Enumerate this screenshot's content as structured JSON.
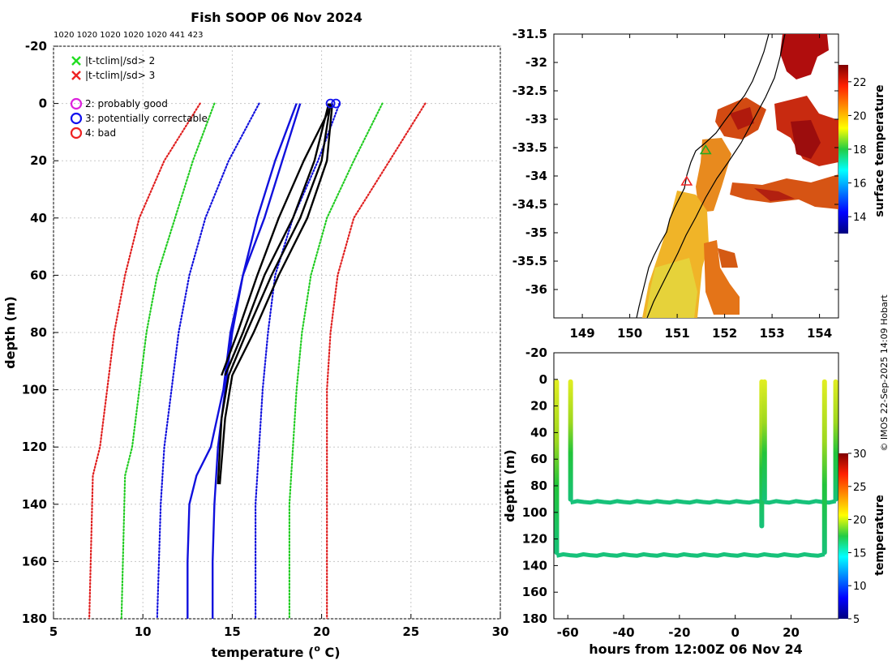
{
  "chart_data": [
    {
      "type": "line",
      "id": "profiles",
      "title": "Fish SOOP 06 Nov 2024",
      "subtitle": "1020 1020 1020 1020 1020 441 423",
      "xlabel": "temperature (",
      "xlabel_sup": "o",
      "xlabel_tail": " C)",
      "ylabel": "depth (m)",
      "xlim": [
        5,
        30
      ],
      "ylim": [
        -20,
        180
      ],
      "y_inverted": true,
      "xticks": [
        5,
        10,
        15,
        20,
        25,
        30
      ],
      "yticks": [
        -20,
        0,
        20,
        40,
        60,
        80,
        100,
        120,
        140,
        160,
        180
      ],
      "grid": true,
      "legend": [
        {
          "label": "|t-tclim|/sd> 2",
          "marker": "x",
          "color": "#22dd22"
        },
        {
          "label": "|t-tclim|/sd> 3",
          "marker": "x",
          "color": "#ee2222"
        },
        {
          "label": "2: probably good",
          "marker": "o",
          "color": "#dd22dd"
        },
        {
          "label": "3: potentially correctable",
          "marker": "o",
          "color": "#1111ee"
        },
        {
          "label": "4: bad",
          "marker": "o",
          "color": "#ee2222"
        }
      ],
      "series": [
        {
          "name": "clim-3sd-left",
          "color": "#e02020",
          "dotted": true,
          "depth": [
            0,
            20,
            40,
            60,
            80,
            100,
            120,
            130,
            180
          ],
          "values": [
            13.2,
            11.2,
            9.8,
            9.0,
            8.4,
            8.0,
            7.6,
            7.2,
            7.0
          ]
        },
        {
          "name": "clim-2sd-left",
          "color": "#22cc22",
          "dotted": true,
          "depth": [
            0,
            20,
            40,
            60,
            80,
            100,
            120,
            130,
            180
          ],
          "values": [
            14.0,
            12.8,
            11.8,
            10.8,
            10.2,
            9.8,
            9.4,
            9.0,
            8.8
          ]
        },
        {
          "name": "clim-1sd-left",
          "color": "#1111dd",
          "dotted": true,
          "depth": [
            0,
            20,
            40,
            60,
            80,
            100,
            120,
            140,
            180
          ],
          "values": [
            16.5,
            14.8,
            13.5,
            12.6,
            12.0,
            11.6,
            11.2,
            11.0,
            10.8
          ]
        },
        {
          "name": "clim-1sd-right",
          "color": "#1111dd",
          "dotted": true,
          "depth": [
            0,
            20,
            40,
            60,
            80,
            100,
            120,
            140,
            180
          ],
          "values": [
            21.0,
            19.8,
            18.4,
            17.4,
            17.0,
            16.7,
            16.5,
            16.3,
            16.3
          ]
        },
        {
          "name": "clim-2sd-right",
          "color": "#22cc22",
          "dotted": true,
          "depth": [
            0,
            20,
            40,
            60,
            80,
            100,
            120,
            140,
            180
          ],
          "values": [
            23.4,
            21.8,
            20.3,
            19.4,
            18.9,
            18.6,
            18.4,
            18.2,
            18.2
          ]
        },
        {
          "name": "clim-3sd-right",
          "color": "#e02020",
          "dotted": true,
          "depth": [
            0,
            20,
            40,
            60,
            80,
            100,
            120,
            140,
            180
          ],
          "values": [
            25.8,
            23.8,
            21.8,
            20.9,
            20.5,
            20.3,
            20.3,
            20.3,
            20.3
          ]
        },
        {
          "name": "profile-blue-1",
          "color": "#1010dd",
          "dotted": false,
          "depth": [
            0,
            20,
            40,
            60,
            80,
            100,
            120,
            140,
            160,
            180
          ],
          "values": [
            18.6,
            17.4,
            16.4,
            15.6,
            15.0,
            14.6,
            14.2,
            14.0,
            13.9,
            13.9
          ]
        },
        {
          "name": "profile-blue-2",
          "color": "#1010dd",
          "dotted": false,
          "depth": [
            0,
            20,
            40,
            60,
            80,
            100,
            120,
            130,
            140,
            160,
            180
          ],
          "values": [
            18.8,
            17.8,
            16.8,
            15.6,
            14.9,
            14.5,
            13.8,
            13.0,
            12.6,
            12.5,
            12.5
          ]
        },
        {
          "name": "profile-black-1",
          "color": "#000000",
          "dotted": false,
          "depth": [
            0,
            20,
            40,
            60,
            80,
            95
          ],
          "values": [
            20.4,
            19.6,
            18.4,
            16.8,
            15.6,
            14.6
          ]
        },
        {
          "name": "profile-black-2",
          "color": "#000000",
          "dotted": false,
          "depth": [
            0,
            20,
            40,
            60,
            80,
            95
          ],
          "values": [
            20.6,
            19.0,
            17.6,
            16.4,
            15.3,
            14.4
          ]
        },
        {
          "name": "profile-black-3",
          "color": "#000000",
          "dotted": false,
          "depth": [
            0,
            20,
            40,
            60,
            80,
            95,
            110,
            133
          ],
          "values": [
            20.5,
            20.0,
            18.8,
            17.2,
            15.8,
            14.8,
            14.4,
            14.2
          ]
        },
        {
          "name": "profile-black-4",
          "color": "#000000",
          "dotted": false,
          "depth": [
            0,
            20,
            40,
            60,
            80,
            95,
            110,
            133
          ],
          "values": [
            20.6,
            20.3,
            19.2,
            17.6,
            16.2,
            15.0,
            14.6,
            14.3
          ]
        }
      ],
      "flags": [
        {
          "temp": 20.5,
          "depth": 0,
          "color": "#1111ee"
        },
        {
          "temp": 20.8,
          "depth": 0,
          "color": "#1111ee"
        }
      ]
    },
    {
      "type": "heatmap",
      "id": "sst-map",
      "xlim": [
        148.4,
        154.4
      ],
      "ylim": [
        -36.5,
        -31.5
      ],
      "xticks": [
        149,
        150,
        151,
        152,
        153,
        154
      ],
      "yticks": [
        -31.5,
        -32,
        -32.5,
        -33,
        -33.5,
        -34,
        -34.5,
        -35,
        -35.5,
        -36
      ],
      "colorbar_label": "surface temperature",
      "colorbar_range": [
        13,
        23
      ],
      "colorbar_ticks": [
        14,
        16,
        18,
        20,
        22
      ],
      "markers": [
        {
          "lon": 151.6,
          "lat": -33.55,
          "color": "#22aa22"
        },
        {
          "lon": 151.2,
          "lat": -34.1,
          "color": "#ee2222"
        }
      ]
    },
    {
      "type": "scatter",
      "id": "depth-time",
      "xlabel": "hours from 12:00Z 06 Nov 24",
      "ylabel": "depth (m)",
      "xlim": [
        -65,
        37
      ],
      "ylim": [
        -20,
        180
      ],
      "y_inverted": true,
      "xticks": [
        -60,
        -40,
        -20,
        0,
        20
      ],
      "yticks": [
        -20,
        0,
        20,
        40,
        60,
        80,
        100,
        120,
        140,
        160,
        180
      ],
      "colorbar_label": "temperature",
      "colorbar_range": [
        5,
        30
      ],
      "colorbar_ticks": [
        5,
        10,
        15,
        20,
        25,
        30
      ],
      "casts": [
        {
          "hour": -64,
          "max_depth": 132
        },
        {
          "hour": -59,
          "max_depth": 92
        },
        {
          "hour": 9.5,
          "max_depth": 112
        },
        {
          "hour": 10.5,
          "max_depth": 92
        },
        {
          "hour": 32,
          "max_depth": 132
        },
        {
          "hour": 36,
          "max_depth": 92
        }
      ],
      "tracks": [
        {
          "hour_start": -59,
          "hour_end": 36,
          "depth": 92
        },
        {
          "hour_start": -64,
          "hour_end": 32,
          "depth": 132
        }
      ]
    }
  ],
  "credit": "© IMOS 22-Sep-2025 14:09 Hobart"
}
